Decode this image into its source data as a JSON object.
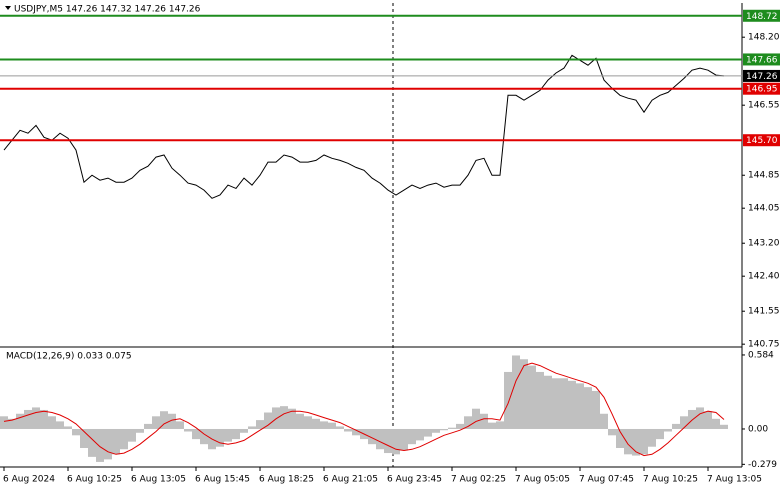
{
  "chart_data": [
    {
      "type": "line",
      "title": "USDJPY,M5  147.26 147.32 147.26 147.26",
      "color": "#000000",
      "values": [
        145.46,
        145.7,
        145.94,
        145.87,
        146.06,
        145.77,
        145.7,
        145.87,
        145.75,
        145.46,
        144.68,
        144.85,
        144.73,
        144.78,
        144.68,
        144.68,
        144.78,
        144.97,
        145.07,
        145.29,
        145.34,
        145.02,
        144.85,
        144.66,
        144.61,
        144.49,
        144.29,
        144.37,
        144.61,
        144.53,
        144.78,
        144.61,
        144.85,
        145.17,
        145.17,
        145.34,
        145.29,
        145.17,
        145.17,
        145.21,
        145.34,
        145.26,
        145.21,
        145.14,
        145.04,
        144.97,
        144.78,
        144.66,
        144.49,
        144.37,
        144.49,
        144.61,
        144.53,
        144.61,
        144.66,
        144.56,
        144.61,
        144.61,
        144.85,
        145.21,
        145.26,
        144.85,
        144.85,
        146.79,
        146.79,
        146.67,
        146.79,
        146.91,
        147.16,
        147.33,
        147.45,
        147.76,
        147.64,
        147.52,
        147.69,
        147.16,
        146.96,
        146.79,
        146.72,
        146.67,
        146.38,
        146.67,
        146.79,
        146.86,
        147.03,
        147.2,
        147.4,
        147.45,
        147.4,
        147.28,
        147.26
      ],
      "ylim": [
        140.73,
        149.03
      ],
      "yticks": [
        {
          "value": 148.2,
          "label": "148.20"
        },
        146.55,
        144.85,
        144.05,
        {
          "value": 143.2,
          "label": "143.20"
        },
        {
          "value": 142.4,
          "label": "142.40"
        },
        141.55,
        140.75
      ],
      "levels": [
        {
          "value": 148.72,
          "color": "#1e8c1e"
        },
        {
          "value": 147.66,
          "color": "#1e8c1e"
        },
        {
          "value": 146.95,
          "color": "#e00000"
        },
        {
          "value": 145.7,
          "label": "145.70",
          "color": "#e00000"
        },
        {
          "value": 147.26,
          "color": "#000000"
        }
      ]
    },
    {
      "type": "macd",
      "title": "MACD(12,26,9) 0.033 0.075",
      "categories": [
        "6 Aug 2024",
        null,
        null,
        null,
        null,
        null,
        null,
        null,
        "6 Aug 10:25",
        null,
        null,
        null,
        null,
        null,
        null,
        null,
        "6 Aug 13:05",
        null,
        null,
        null,
        null,
        null,
        null,
        null,
        "6 Aug 15:45",
        null,
        null,
        null,
        null,
        null,
        null,
        null,
        "6 Aug 18:25",
        null,
        null,
        null,
        null,
        null,
        null,
        null,
        "6 Aug 21:05",
        null,
        null,
        null,
        null,
        null,
        null,
        null,
        "6 Aug 23:45",
        null,
        null,
        null,
        null,
        null,
        null,
        null,
        "7 Aug 02:25",
        null,
        null,
        null,
        null,
        null,
        null,
        null,
        "7 Aug 05:05",
        null,
        null,
        null,
        null,
        null,
        null,
        null,
        "7 Aug 07:45",
        null,
        null,
        null,
        null,
        null,
        null,
        null,
        "7 Aug 10:25",
        null,
        null,
        null,
        null,
        null,
        null,
        null,
        "7 Aug 13:05",
        null,
        null
      ],
      "series": [
        {
          "color": "#c0c0c0",
          "values": [
            0.1,
            0.08,
            0.12,
            0.15,
            0.17,
            0.15,
            0.1,
            0.06,
            0.02,
            -0.05,
            -0.15,
            -0.22,
            -0.26,
            -0.24,
            -0.2,
            -0.16,
            -0.1,
            -0.03,
            0.04,
            0.1,
            0.14,
            0.12,
            0.06,
            -0.02,
            -0.08,
            -0.12,
            -0.16,
            -0.14,
            -0.1,
            -0.08,
            -0.03,
            0.02,
            0.07,
            0.13,
            0.17,
            0.18,
            0.16,
            0.12,
            0.1,
            0.08,
            0.06,
            0.05,
            0.02,
            -0.02,
            -0.05,
            -0.08,
            -0.12,
            -0.16,
            -0.19,
            -0.2,
            -0.17,
            -0.12,
            -0.09,
            -0.06,
            -0.03,
            -0.01,
            0.01,
            0.04,
            0.1,
            0.16,
            0.12,
            0.05,
            0.06,
            0.45,
            0.58,
            0.55,
            0.5,
            0.45,
            0.42,
            0.4,
            0.4,
            0.38,
            0.36,
            0.33,
            0.3,
            0.12,
            -0.05,
            -0.15,
            -0.2,
            -0.21,
            -0.2,
            -0.14,
            -0.08,
            -0.02,
            0.04,
            0.1,
            0.15,
            0.17,
            0.14,
            0.08,
            0.033
          ]
        },
        {
          "color": "#e00000",
          "values": [
            0.06,
            0.07,
            0.09,
            0.11,
            0.13,
            0.14,
            0.13,
            0.11,
            0.08,
            0.04,
            -0.02,
            -0.08,
            -0.14,
            -0.18,
            -0.2,
            -0.19,
            -0.16,
            -0.12,
            -0.07,
            -0.02,
            0.04,
            0.07,
            0.08,
            0.05,
            0.01,
            -0.04,
            -0.08,
            -0.11,
            -0.12,
            -0.11,
            -0.09,
            -0.05,
            -0.01,
            0.03,
            0.08,
            0.12,
            0.14,
            0.14,
            0.13,
            0.11,
            0.09,
            0.07,
            0.05,
            0.02,
            -0.01,
            -0.04,
            -0.07,
            -0.1,
            -0.13,
            -0.16,
            -0.17,
            -0.16,
            -0.14,
            -0.11,
            -0.08,
            -0.05,
            -0.03,
            -0.01,
            0.02,
            0.06,
            0.08,
            0.08,
            0.07,
            0.2,
            0.38,
            0.5,
            0.52,
            0.5,
            0.47,
            0.44,
            0.42,
            0.4,
            0.38,
            0.36,
            0.33,
            0.25,
            0.12,
            -0.02,
            -0.12,
            -0.18,
            -0.21,
            -0.2,
            -0.16,
            -0.11,
            -0.05,
            0.01,
            0.07,
            0.12,
            0.14,
            0.13,
            0.075
          ]
        }
      ],
      "ylim": [
        -0.3,
        0.631
      ],
      "yticks": [
        0.584,
        {
          "value": 0,
          "label": "0.00"
        },
        -0.279
      ]
    }
  ]
}
